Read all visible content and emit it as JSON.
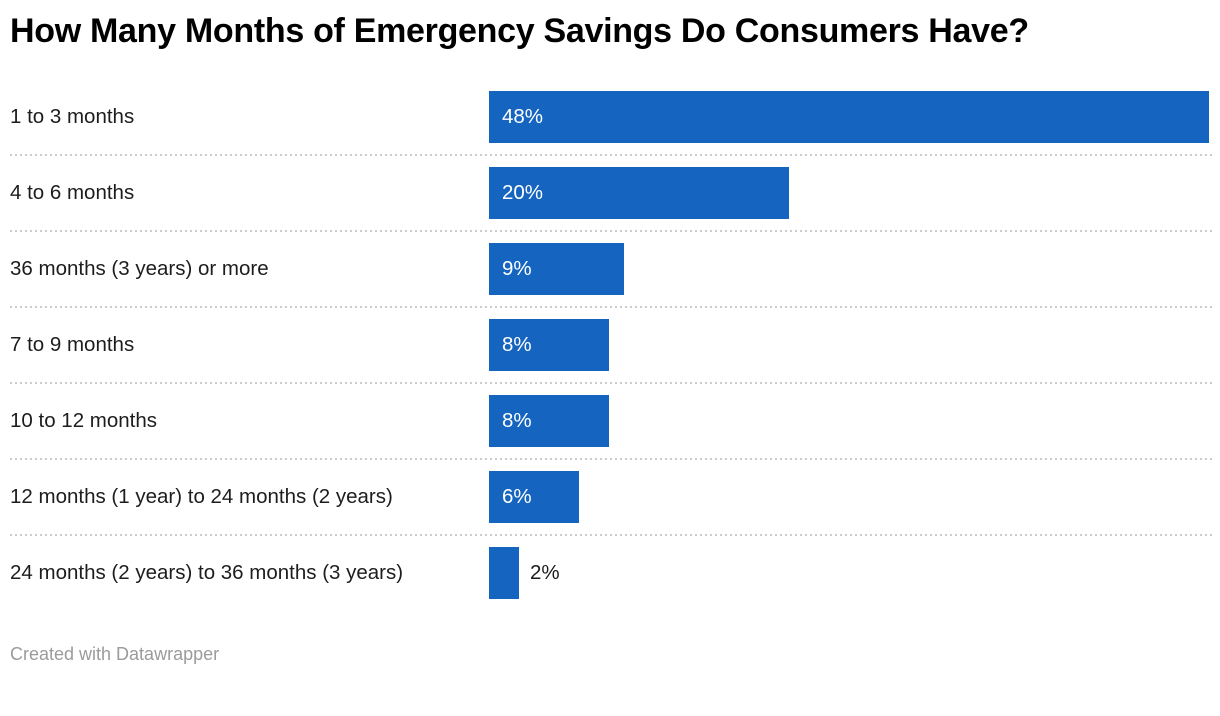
{
  "header": {
    "title": "How Many Months of Emergency Savings Do Consumers Have?"
  },
  "footer": {
    "credit": "Created with Datawrapper"
  },
  "colors": {
    "bar": "#1565C0",
    "value_label_inside": "#ffffff",
    "value_label_outside": "#1a1a1a",
    "category_label": "#1d1d1d",
    "title": "#000000",
    "separator": "#cbcbcb",
    "credit_text": "#9b9b9b",
    "background": "#ffffff"
  },
  "chart_data": {
    "type": "bar",
    "orientation": "horizontal",
    "title": "How Many Months of Emergency Savings Do Consumers Have?",
    "categories": [
      "1 to 3 months",
      "4 to 6 months",
      "36 months (3 years) or more",
      "7 to 9 months",
      "10 to 12 months",
      "12 months (1 year) to 24 months (2 years)",
      "24 months (2 years) to 36 months (3 years)"
    ],
    "values": [
      48,
      20,
      9,
      8,
      8,
      6,
      2
    ],
    "value_labels": [
      "48%",
      "20%",
      "9%",
      "8%",
      "8%",
      "6%",
      "2%"
    ],
    "unit": "%",
    "xlabel": "",
    "ylabel": "",
    "xlim": [
      0,
      48
    ],
    "grid": false,
    "legend": "none",
    "value_label_position": "inside bar start; outside bar for smallest value",
    "row_separator": "dotted"
  }
}
